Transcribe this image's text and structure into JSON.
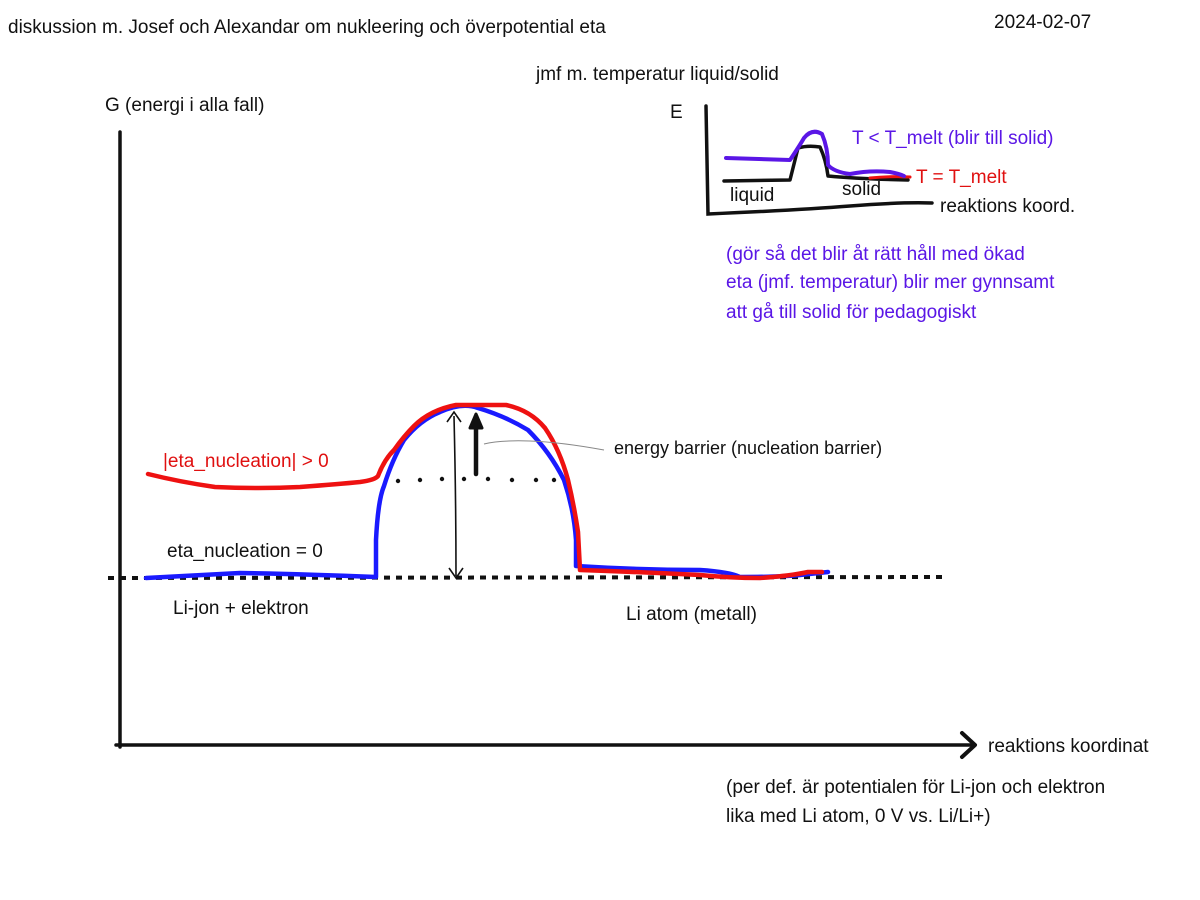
{
  "header": {
    "title": "diskussion m. Josef och Alexandar om nukleering och överpotential eta",
    "date": "2024-02-07"
  },
  "inset": {
    "caption": "jmf m. temperatur liquid/solid",
    "y_label": "E",
    "x_label": "reaktions koord.",
    "label_liquid": "liquid",
    "label_solid": "solid",
    "legend_blue": "T < T_melt (blir till solid)",
    "legend_red": "T = T_melt",
    "note_line1": "(gör så det blir åt rätt håll med ökad",
    "note_line2": "eta (jmf. temperatur) blir mer gynnsamt",
    "note_line3": "att gå till solid för pedagogiskt"
  },
  "main": {
    "y_label": "G  (energi i alla fall)",
    "x_label": "reaktions koordinat",
    "label_red_curve": "|eta_nucleation| > 0",
    "label_blue_curve": "eta_nucleation = 0",
    "label_start": "Li-jon  +  elektron",
    "label_end": "Li atom  (metall)",
    "label_barrier": "energy barrier (nucleation barrier)",
    "label_zero": "0 V vs Li/Li+",
    "note_line1": "(per def. är potentialen för Li-jon och elektron",
    "note_line2": "lika med Li atom, 0 V vs. Li/Li+)"
  },
  "colors": {
    "blue": "#1a1aff",
    "red": "#ee1111",
    "purple_text": "#5a16e6",
    "red_text": "#e01010",
    "ink": "#111111"
  }
}
